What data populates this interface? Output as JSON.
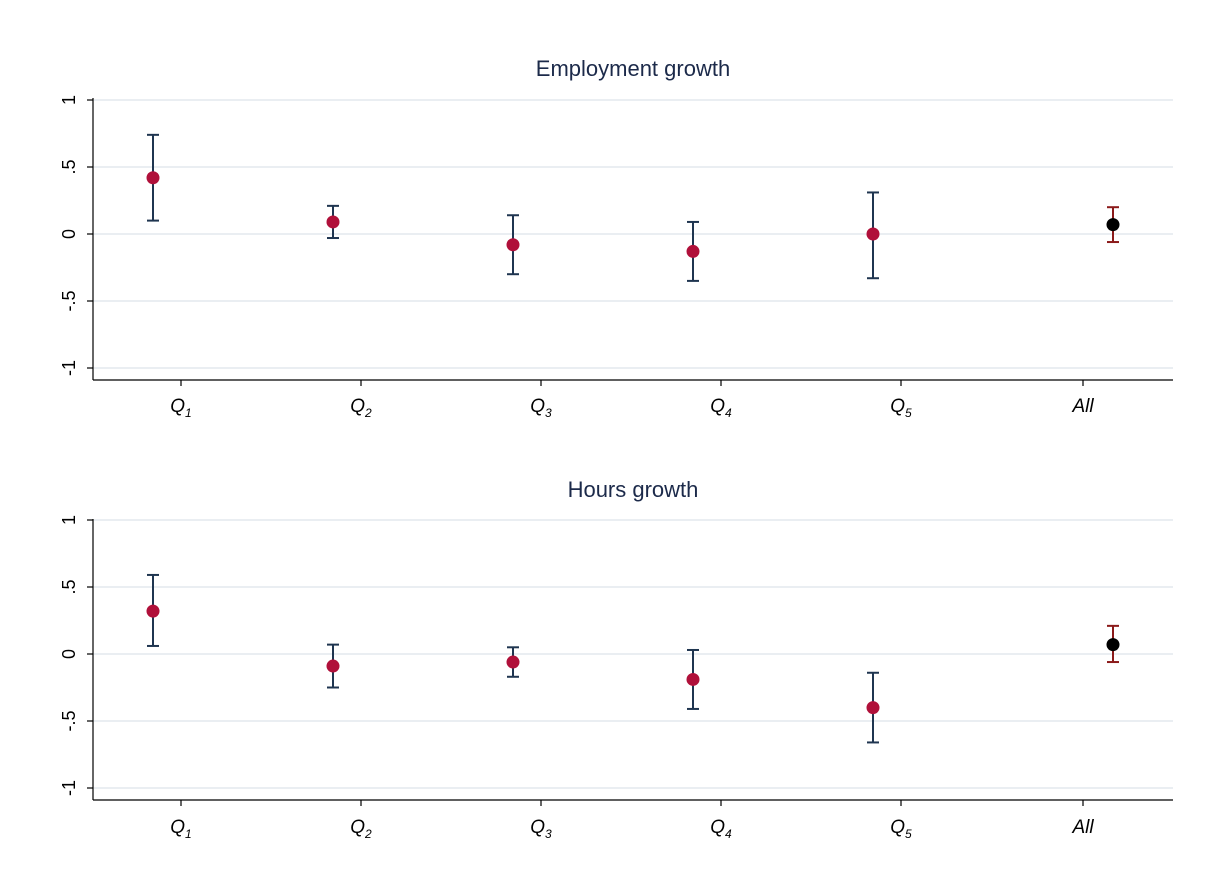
{
  "chart_data": [
    {
      "type": "scatter",
      "title": "Employment growth",
      "xlabel": "",
      "ylabel": "",
      "categories": [
        {
          "base": "Q",
          "sub": "1"
        },
        {
          "base": "Q",
          "sub": "2"
        },
        {
          "base": "Q",
          "sub": "3"
        },
        {
          "base": "Q",
          "sub": "4"
        },
        {
          "base": "Q",
          "sub": "5"
        },
        {
          "base": "All",
          "sub": ""
        }
      ],
      "yticks": [
        1,
        0.5,
        0,
        -0.5,
        -1
      ],
      "ytick_labels": [
        "1",
        ".5",
        "0",
        "-.5",
        "-1"
      ],
      "ylim": [
        -1.1,
        1.0
      ],
      "grid": true,
      "estimates": [
        0.42,
        0.09,
        -0.08,
        -0.13,
        0.0,
        0.07
      ],
      "ci_low": [
        0.1,
        -0.03,
        -0.3,
        -0.35,
        -0.33,
        -0.06
      ],
      "ci_high": [
        0.74,
        0.21,
        0.14,
        0.09,
        0.31,
        0.2
      ]
    },
    {
      "type": "scatter",
      "title": "Hours growth",
      "xlabel": "",
      "ylabel": "",
      "categories": [
        {
          "base": "Q",
          "sub": "1"
        },
        {
          "base": "Q",
          "sub": "2"
        },
        {
          "base": "Q",
          "sub": "3"
        },
        {
          "base": "Q",
          "sub": "4"
        },
        {
          "base": "Q",
          "sub": "5"
        },
        {
          "base": "All",
          "sub": ""
        }
      ],
      "yticks": [
        1,
        0.5,
        0,
        -0.5,
        -1
      ],
      "ytick_labels": [
        "1",
        ".5",
        "0",
        "-.5",
        "-1"
      ],
      "ylim": [
        -1.1,
        1.0
      ],
      "grid": true,
      "estimates": [
        0.32,
        -0.09,
        -0.06,
        -0.19,
        -0.4,
        0.07
      ],
      "ci_low": [
        0.06,
        -0.25,
        -0.17,
        -0.41,
        -0.66,
        -0.06
      ],
      "ci_high": [
        0.59,
        0.07,
        0.05,
        0.03,
        -0.14,
        0.21
      ]
    }
  ],
  "colors": {
    "marker": "#b0103a",
    "ci": "#1f3550",
    "all_marker": "#000000",
    "all_ci": "#8b1a1a",
    "grid": "#e3e9ee",
    "axis": "#000000",
    "title": "#1c2a4a"
  }
}
